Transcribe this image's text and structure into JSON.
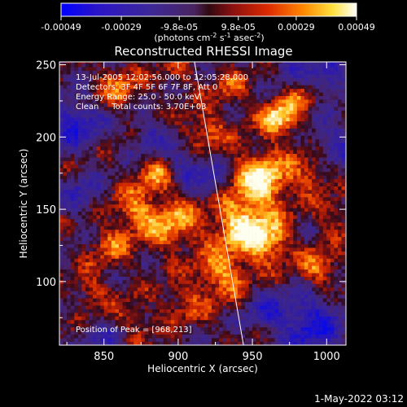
{
  "colorbar": {
    "tick_labels": [
      "-0.00049",
      "-0.00029",
      "-9.8e-05",
      "9.8e-05",
      "0.00029",
      "0.00049"
    ],
    "tick_values": [
      -0.00049,
      -0.00029,
      -9.8e-05,
      9.8e-05,
      0.00029,
      0.00049
    ],
    "range": [
      -0.00049,
      0.00049
    ],
    "units": "(photons cm",
    "units_exp1": "-2",
    "units_s": " s",
    "units_exp2": "-1",
    "units_asec": " asec",
    "units_exp3": "-2",
    "units_close": ")",
    "colors": [
      "#0000ff",
      "#3a1fb0",
      "#3e2a8c",
      "#5a2a7a",
      "#7a1a1a",
      "#cc2200",
      "#ff6600",
      "#ffdd33",
      "#ffffff"
    ]
  },
  "chart_data": {
    "type": "heatmap",
    "title": "Reconstructed RHESSI Image",
    "xlabel": "Heliocentric X (arcsec)",
    "ylabel": "Heliocentric Y (arcsec)",
    "xlim": [
      820,
      1013
    ],
    "ylim": [
      56,
      252
    ],
    "xticks": [
      850,
      900,
      950,
      1000
    ],
    "yticks": [
      100,
      150,
      200,
      250
    ],
    "annotations": [
      "13-Jul-2005 12:02:56.000 to 12:05:28.000",
      "Detectors: 3F 4F 5F 6F 7F 8F, Att 0",
      "Energy Range: 25.0 - 50.0 keV",
      "Clean     Total counts: 3.70E+03"
    ],
    "peak_label": "Position of Peak = [968,213]",
    "peak": [
      968,
      213
    ],
    "limb_line": {
      "x_top": 911,
      "x_bottom": 944
    },
    "blobs": [
      {
        "x": 956,
        "y": 170,
        "amp": 1.0,
        "s": 14
      },
      {
        "x": 968,
        "y": 213,
        "amp": 0.95,
        "s": 9
      },
      {
        "x": 940,
        "y": 140,
        "amp": 0.85,
        "s": 12
      },
      {
        "x": 960,
        "y": 128,
        "amp": 0.85,
        "s": 11
      },
      {
        "x": 930,
        "y": 105,
        "amp": 0.7,
        "s": 12
      },
      {
        "x": 895,
        "y": 140,
        "amp": 0.7,
        "s": 14
      },
      {
        "x": 870,
        "y": 150,
        "amp": 0.55,
        "s": 10
      },
      {
        "x": 885,
        "y": 175,
        "amp": 0.6,
        "s": 9
      },
      {
        "x": 860,
        "y": 235,
        "amp": 0.55,
        "s": 10
      },
      {
        "x": 918,
        "y": 205,
        "amp": 0.55,
        "s": 10
      },
      {
        "x": 855,
        "y": 125,
        "amp": 0.45,
        "s": 10
      },
      {
        "x": 990,
        "y": 175,
        "amp": 0.45,
        "s": 9
      },
      {
        "x": 995,
        "y": 110,
        "amp": 0.6,
        "s": 9
      },
      {
        "x": 985,
        "y": 230,
        "amp": 0.45,
        "s": 8
      },
      {
        "x": 840,
        "y": 95,
        "amp": 0.4,
        "s": 9
      },
      {
        "x": 905,
        "y": 85,
        "amp": 0.4,
        "s": 10
      },
      {
        "x": 870,
        "y": 75,
        "amp": 0.35,
        "s": 10
      },
      {
        "x": 1005,
        "y": 145,
        "amp": 0.4,
        "s": 8
      },
      {
        "x": 935,
        "y": 235,
        "amp": 0.4,
        "s": 9
      },
      {
        "x": 900,
        "y": 245,
        "amp": 0.35,
        "s": 8
      },
      {
        "x": 830,
        "y": 210,
        "amp": -0.7,
        "s": 12
      },
      {
        "x": 990,
        "y": 70,
        "amp": -0.8,
        "s": 14
      },
      {
        "x": 1000,
        "y": 240,
        "amp": -0.6,
        "s": 10
      },
      {
        "x": 905,
        "y": 180,
        "amp": -0.5,
        "s": 10
      },
      {
        "x": 880,
        "y": 200,
        "amp": -0.45,
        "s": 9
      },
      {
        "x": 925,
        "y": 170,
        "amp": -0.4,
        "s": 8
      },
      {
        "x": 1005,
        "y": 195,
        "amp": -0.55,
        "s": 10
      },
      {
        "x": 835,
        "y": 160,
        "amp": -0.45,
        "s": 9
      },
      {
        "x": 960,
        "y": 80,
        "amp": -0.5,
        "s": 10
      },
      {
        "x": 850,
        "y": 60,
        "amp": -0.4,
        "s": 9
      },
      {
        "x": 975,
        "y": 250,
        "amp": -0.4,
        "s": 8
      }
    ]
  },
  "footer": {
    "timestamp": "1-May-2022 03:12"
  }
}
